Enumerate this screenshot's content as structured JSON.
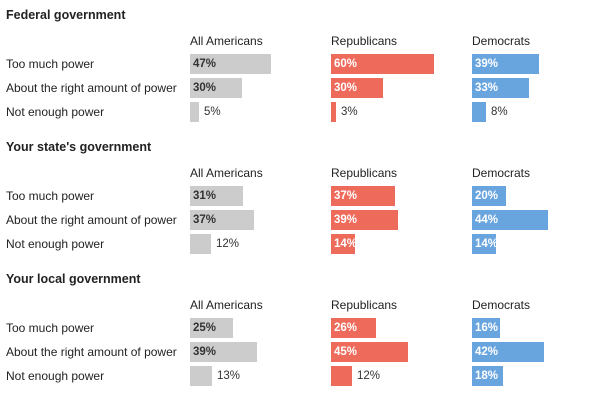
{
  "chart_data": {
    "type": "bar",
    "orientation": "horizontal",
    "columns": [
      {
        "name": "All Americans",
        "color": "#cccccc",
        "label_color": "#333333"
      },
      {
        "name": "Republicans",
        "color": "#ee6a5b",
        "label_color": "#ffffff"
      },
      {
        "name": "Democrats",
        "color": "#68a5df",
        "label_color": "#ffffff"
      }
    ],
    "categories": [
      "Too much power",
      "About the right amount of power",
      "Not enough power"
    ],
    "panels": [
      {
        "title": "Federal government",
        "series": [
          {
            "name": "All Americans",
            "values": [
              47,
              30,
              5
            ],
            "labels": [
              "47%",
              "30%",
              "5%"
            ]
          },
          {
            "name": "Republicans",
            "values": [
              60,
              30,
              3
            ],
            "labels": [
              "60%",
              "30%",
              "3%"
            ]
          },
          {
            "name": "Democrats",
            "values": [
              39,
              33,
              8
            ],
            "labels": [
              "39%",
              "33%",
              "8%"
            ]
          }
        ]
      },
      {
        "title": "Your state's government",
        "series": [
          {
            "name": "All Americans",
            "values": [
              31,
              37,
              12
            ],
            "labels": [
              "31%",
              "37%",
              "12%"
            ]
          },
          {
            "name": "Republicans",
            "values": [
              37,
              39,
              14
            ],
            "labels": [
              "37%",
              "39%",
              "14%"
            ]
          },
          {
            "name": "Democrats",
            "values": [
              20,
              44,
              14
            ],
            "labels": [
              "20%",
              "44%",
              "14%"
            ]
          }
        ]
      },
      {
        "title": "Your local government",
        "series": [
          {
            "name": "All Americans",
            "values": [
              25,
              39,
              13
            ],
            "labels": [
              "25%",
              "39%",
              "13%"
            ]
          },
          {
            "name": "Republicans",
            "values": [
              26,
              45,
              12
            ],
            "labels": [
              "26%",
              "45%",
              "12%"
            ]
          },
          {
            "name": "Democrats",
            "values": [
              16,
              42,
              18
            ],
            "labels": [
              "16%",
              "42%",
              "18%"
            ]
          }
        ]
      }
    ]
  }
}
